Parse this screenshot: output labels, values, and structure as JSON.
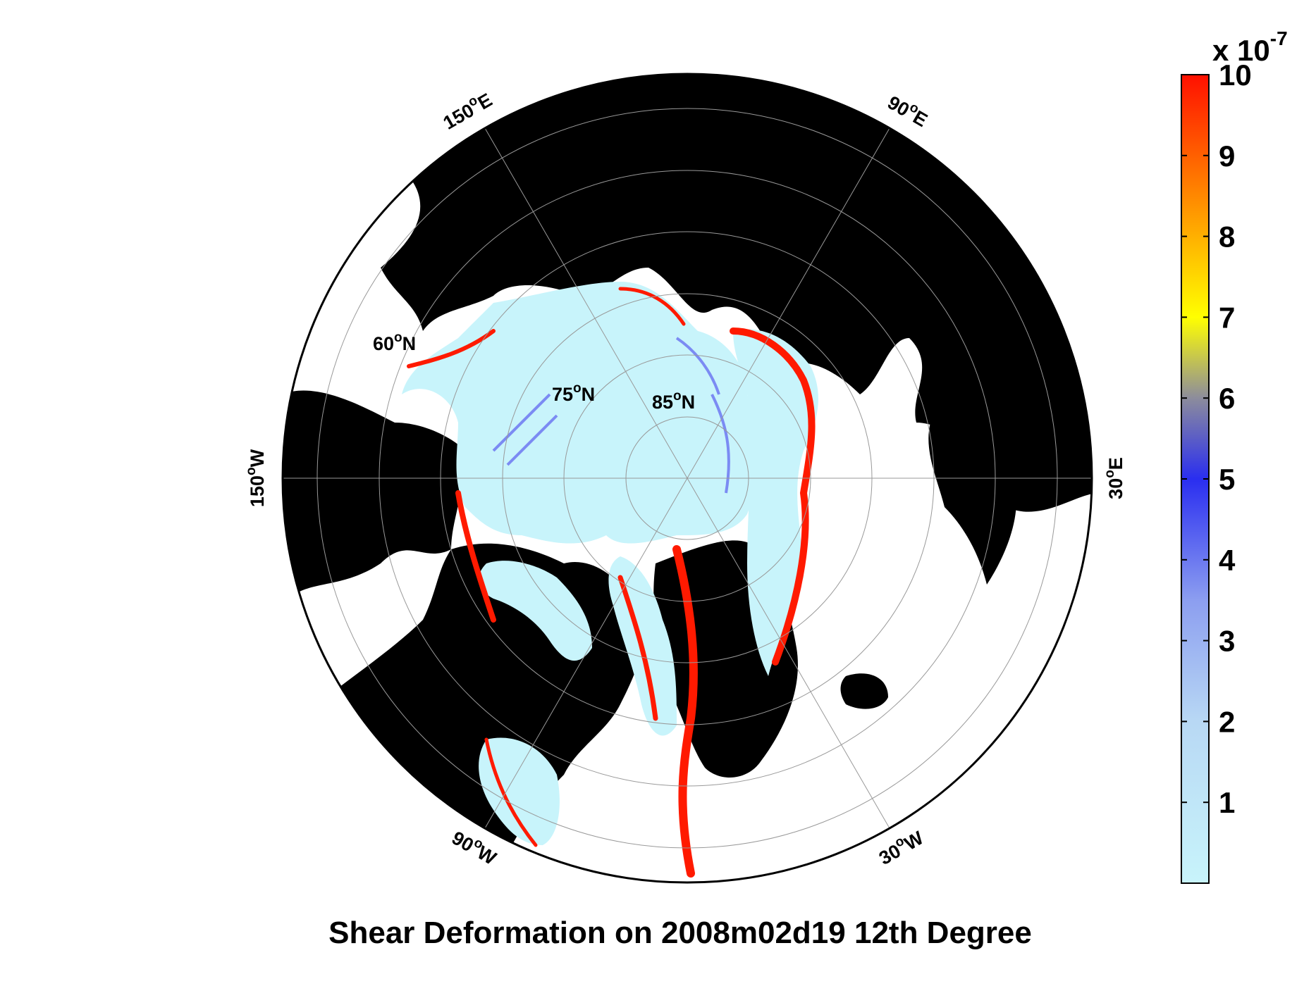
{
  "figure": {
    "title": "Shear Deformation on 2008m02d19 12th Degree"
  },
  "map": {
    "projection": "north polar stereographic",
    "longitude_labels": [
      {
        "id": "lon-150e",
        "text": "150",
        "suffix": "E"
      },
      {
        "id": "lon-90e",
        "text": "90",
        "suffix": "E"
      },
      {
        "id": "lon-30e",
        "text": "30",
        "suffix": "E"
      },
      {
        "id": "lon-30w",
        "text": "30",
        "suffix": "W"
      },
      {
        "id": "lon-90w",
        "text": "90",
        "suffix": "W"
      },
      {
        "id": "lon-150w",
        "text": "150",
        "suffix": "W"
      }
    ],
    "latitude_labels": [
      {
        "id": "lat-60n",
        "text": "60",
        "suffix": "N"
      },
      {
        "id": "lat-75n",
        "text": "75",
        "suffix": "N"
      },
      {
        "id": "lat-85n",
        "text": "85",
        "suffix": "N"
      }
    ],
    "degree_symbol": "o",
    "colors": {
      "land": "#000000",
      "no_data": "#ffffff",
      "low_shear": "#c8f4fb",
      "high_shear": "#ff1a00",
      "grid": "#999999"
    }
  },
  "colorbar": {
    "multiplier_prefix": "x 10",
    "multiplier_exponent": "-7",
    "min": 0,
    "max": 10,
    "ticks": [
      "1",
      "2",
      "3",
      "4",
      "5",
      "6",
      "7",
      "8",
      "9",
      "10"
    ],
    "stops": [
      {
        "value": 0,
        "color": "#c8f4fb"
      },
      {
        "value": 2,
        "color": "#b8d8f4"
      },
      {
        "value": 3.5,
        "color": "#8c9ef0"
      },
      {
        "value": 5,
        "color": "#2a2ef0"
      },
      {
        "value": 6,
        "color": "#8c8c9c"
      },
      {
        "value": 7,
        "color": "#ffff00"
      },
      {
        "value": 8,
        "color": "#ffb000"
      },
      {
        "value": 9,
        "color": "#ff6000"
      },
      {
        "value": 10,
        "color": "#ff1000"
      }
    ]
  }
}
